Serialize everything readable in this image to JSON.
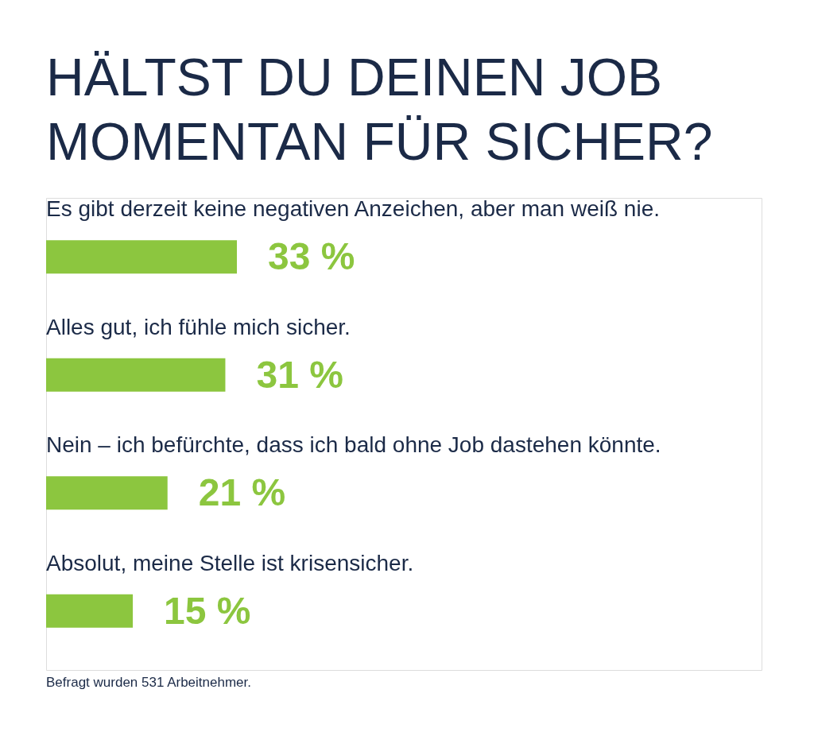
{
  "chart_data": {
    "type": "bar",
    "orientation": "horizontal",
    "title": "HÄLTST DU DEINEN JOB\nMOMENTAN FÜR SICHER?",
    "categories": [
      "Es gibt derzeit keine negativen Anzeichen, aber man weiß nie.",
      "Alles gut, ich fühle mich sicher.",
      "Nein – ich befürchte, dass ich bald ohne Job dastehen könnte.",
      "Absolut, meine Stelle ist krisensicher."
    ],
    "values": [
      33,
      31,
      21,
      15
    ],
    "color": "#8cc63f",
    "value_labels": [
      "33 %",
      "31 %",
      "21 %",
      "15 %"
    ],
    "tick_labels": "y",
    "annotations": [
      "Befragt wurden 531 Arbeitnehmer."
    ]
  }
}
